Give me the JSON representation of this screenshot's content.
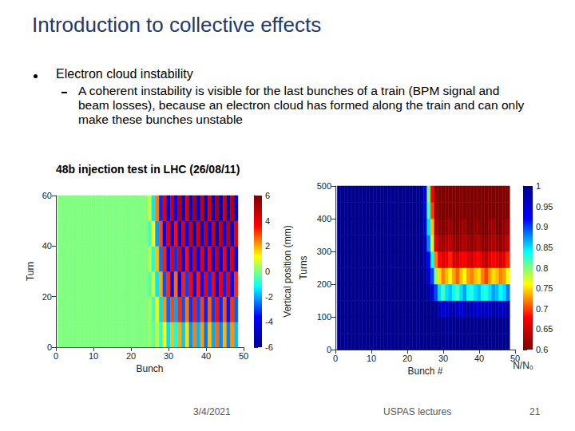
{
  "slide": {
    "title": "Introduction to collective effects",
    "bullet": "Electron cloud instability",
    "sub_bullet": "A coherent instability is visible for the last bunches of a train (BPM signal and beam losses), because an electron cloud has formed along the train and can only make these bunches unstable",
    "caption": "48b injection test in LHC (26/08/11)",
    "footer": {
      "date": "3/4/2021",
      "course": "USPAS lectures",
      "page": "21"
    }
  },
  "chart_data": [
    {
      "type": "heatmap",
      "x_label": "Bunch",
      "y_label": "Turn",
      "x": [
        1,
        2,
        3,
        4,
        5,
        6,
        7,
        8,
        9,
        10,
        11,
        12,
        13,
        14,
        15,
        16,
        17,
        18,
        19,
        20,
        21,
        22,
        23,
        24,
        25,
        26,
        27,
        28,
        29,
        30,
        31,
        32,
        33,
        34,
        35,
        36,
        37,
        38,
        39,
        40,
        41,
        42,
        43,
        44,
        45,
        46,
        47,
        48
      ],
      "y": [
        5,
        15,
        25,
        35,
        45,
        55
      ],
      "z": [
        [
          0,
          0,
          0,
          0,
          0,
          0,
          0,
          0,
          0,
          0,
          0,
          0,
          0,
          0,
          0,
          0,
          0,
          0,
          0,
          0,
          0,
          0,
          0,
          0,
          0.2,
          -0.3,
          0.5,
          -0.8,
          1.2,
          -1.5,
          1.8,
          -1.2,
          2.0,
          -1.7,
          1.5,
          -2.2,
          2.4,
          -1.9,
          2.1,
          -2.5,
          1.8,
          -2.0,
          2.6,
          -2.3,
          1.9,
          -2.4,
          2.2,
          -1.8
        ],
        [
          0,
          0,
          0,
          0,
          0,
          0,
          0,
          0,
          0,
          0,
          0,
          0,
          0,
          0,
          0,
          0,
          0,
          0,
          0,
          0,
          0,
          0,
          0,
          0,
          0.3,
          -0.6,
          1.0,
          -1.5,
          2.2,
          -2.6,
          2.9,
          -2.1,
          3.2,
          -2.8,
          2.5,
          -3.1,
          3.4,
          -2.9,
          3.0,
          -3.3,
          2.7,
          -3.0,
          3.5,
          -3.2,
          2.8,
          -3.4,
          3.1,
          -2.7
        ],
        [
          0,
          0,
          0,
          0,
          0,
          0,
          0,
          0,
          0,
          0,
          0,
          0,
          0,
          0,
          0,
          0,
          0,
          0,
          0,
          0,
          0,
          0,
          0,
          0,
          -0.4,
          0.8,
          -1.4,
          2.0,
          -2.8,
          3.2,
          -3.5,
          2.6,
          -3.8,
          3.3,
          -3.0,
          3.6,
          -4.0,
          3.4,
          -3.5,
          3.9,
          -3.2,
          3.6,
          -4.1,
          3.8,
          -3.3,
          4.0,
          -3.7,
          3.2
        ],
        [
          0,
          0,
          0,
          0,
          0,
          0,
          0,
          0,
          0,
          0,
          0,
          0,
          0,
          0,
          0,
          0,
          0,
          0,
          0,
          0,
          0,
          0,
          0,
          0,
          0.5,
          -1.0,
          1.8,
          -2.5,
          3.3,
          -3.7,
          4.0,
          -3.1,
          4.3,
          -3.8,
          3.5,
          -4.1,
          4.5,
          -3.9,
          4.0,
          -4.4,
          3.7,
          -4.1,
          4.6,
          -4.3,
          3.8,
          -4.5,
          4.2,
          -3.7
        ],
        [
          0,
          0,
          0,
          0,
          0,
          0,
          0,
          0,
          0,
          0,
          0,
          0,
          0,
          0,
          0,
          0,
          0,
          0,
          0,
          0,
          0,
          0,
          0,
          0,
          -0.6,
          1.2,
          -2.1,
          2.9,
          -3.7,
          4.1,
          -4.4,
          3.5,
          -4.7,
          4.2,
          -3.9,
          4.5,
          -4.9,
          4.3,
          -4.4,
          4.8,
          -4.1,
          4.5,
          -5.0,
          4.7,
          -4.2,
          4.9,
          -4.6,
          4.1
        ],
        [
          0,
          0,
          0,
          0,
          0,
          0,
          0,
          0,
          0,
          0,
          0,
          0,
          0,
          0,
          0,
          0,
          0,
          0,
          0,
          0,
          0,
          0,
          0,
          0,
          0.7,
          -1.4,
          2.4,
          -3.2,
          4.0,
          -4.4,
          4.7,
          -3.8,
          5.0,
          -4.5,
          4.2,
          -4.8,
          5.2,
          -4.6,
          4.7,
          -5.1,
          4.4,
          -4.8,
          5.3,
          -5.0,
          4.5,
          -5.2,
          4.9,
          -4.4
        ]
      ],
      "xlim": [
        0,
        50
      ],
      "xticks": [
        0,
        10,
        20,
        30,
        40,
        50
      ],
      "ylim": [
        0,
        60
      ],
      "yticks": [
        0,
        20,
        40,
        60
      ],
      "color_label": "Vertical position (mm)",
      "color_range": [
        -6,
        6
      ],
      "color_ticks": [
        -6,
        -4,
        -2,
        0,
        2,
        4,
        6
      ]
    },
    {
      "type": "heatmap",
      "x_label": "Bunch #",
      "y_label": "Turns",
      "x": [
        1,
        2,
        3,
        4,
        5,
        6,
        7,
        8,
        9,
        10,
        11,
        12,
        13,
        14,
        15,
        16,
        17,
        18,
        19,
        20,
        21,
        22,
        23,
        24,
        25,
        26,
        27,
        28,
        29,
        30,
        31,
        32,
        33,
        34,
        35,
        36,
        37,
        38,
        39,
        40,
        41,
        42,
        43,
        44,
        45,
        46,
        47,
        48
      ],
      "y": [
        25,
        75,
        125,
        175,
        225,
        275,
        325,
        375,
        425,
        475
      ],
      "z": [
        [
          1,
          1,
          1,
          1,
          1,
          1,
          1,
          1,
          1,
          1,
          1,
          1,
          1,
          1,
          1,
          1,
          1,
          1,
          1,
          1,
          1,
          1,
          1,
          1,
          1,
          1,
          1,
          1,
          1,
          1,
          1,
          1,
          1,
          1,
          1,
          1,
          1,
          1,
          1,
          1,
          1,
          1,
          1,
          1,
          1,
          1,
          1,
          1
        ],
        [
          1,
          1,
          1,
          1,
          1,
          1,
          1,
          1,
          1,
          1,
          1,
          1,
          1,
          1,
          1,
          1,
          1,
          1,
          1,
          1,
          1,
          1,
          1,
          1,
          1,
          1,
          1,
          1,
          1,
          1,
          0.99,
          1,
          1,
          1,
          1,
          1,
          1,
          1,
          1,
          1,
          1,
          1,
          1,
          1,
          1,
          1,
          1,
          1
        ],
        [
          1,
          1,
          1,
          1,
          1,
          1,
          1,
          1,
          1,
          1,
          1,
          1,
          1,
          1,
          1,
          1,
          1,
          1,
          1,
          1,
          1,
          1,
          1,
          1,
          1,
          1,
          1,
          1,
          0.97,
          0.95,
          0.96,
          0.97,
          0.98,
          0.96,
          0.95,
          0.97,
          0.98,
          0.97,
          0.96,
          0.95,
          0.97,
          0.96,
          0.97,
          0.98,
          0.97,
          0.96,
          0.97,
          0.98
        ],
        [
          1,
          1,
          1,
          1,
          1,
          1,
          1,
          1,
          1,
          1,
          1,
          1,
          1,
          1,
          1,
          1,
          1,
          1,
          1,
          1,
          1,
          1,
          1,
          1,
          1,
          0.98,
          0.96,
          0.9,
          0.85,
          0.82,
          0.85,
          0.86,
          0.84,
          0.82,
          0.85,
          0.87,
          0.84,
          0.83,
          0.85,
          0.86,
          0.84,
          0.83,
          0.85,
          0.87,
          0.86,
          0.84,
          0.85,
          0.88
        ],
        [
          1,
          1,
          1,
          1,
          1,
          1,
          1,
          1,
          1,
          1,
          1,
          1,
          1,
          1,
          1,
          1,
          1,
          1,
          1,
          1,
          1,
          1,
          1,
          1,
          0.99,
          0.95,
          0.9,
          0.8,
          0.75,
          0.72,
          0.74,
          0.76,
          0.73,
          0.71,
          0.74,
          0.76,
          0.73,
          0.72,
          0.74,
          0.75,
          0.72,
          0.7,
          0.73,
          0.75,
          0.74,
          0.72,
          0.73,
          0.76
        ],
        [
          1,
          1,
          1,
          1,
          1,
          1,
          1,
          1,
          1,
          1,
          1,
          1,
          1,
          1,
          1,
          1,
          1,
          1,
          1,
          1,
          1,
          1,
          1,
          1,
          0.98,
          0.92,
          0.84,
          0.72,
          0.68,
          0.66,
          0.67,
          0.69,
          0.66,
          0.65,
          0.67,
          0.68,
          0.66,
          0.65,
          0.67,
          0.68,
          0.65,
          0.64,
          0.66,
          0.68,
          0.67,
          0.65,
          0.66,
          0.69
        ],
        [
          1,
          1,
          1,
          1,
          1,
          1,
          1,
          1,
          1,
          1,
          1,
          1,
          1,
          1,
          1,
          1,
          1,
          1,
          1,
          1,
          1,
          1,
          1,
          1,
          0.97,
          0.88,
          0.78,
          0.66,
          0.63,
          0.62,
          0.63,
          0.64,
          0.62,
          0.61,
          0.62,
          0.63,
          0.62,
          0.61,
          0.62,
          0.63,
          0.61,
          0.61,
          0.62,
          0.63,
          0.62,
          0.61,
          0.62,
          0.64
        ],
        [
          1,
          1,
          1,
          1,
          1,
          1,
          1,
          1,
          1,
          1,
          1,
          1,
          1,
          1,
          1,
          1,
          1,
          1,
          1,
          1,
          1,
          1,
          1,
          1,
          0.95,
          0.85,
          0.74,
          0.63,
          0.61,
          0.6,
          0.61,
          0.62,
          0.6,
          0.6,
          0.61,
          0.62,
          0.6,
          0.6,
          0.61,
          0.61,
          0.6,
          0.6,
          0.61,
          0.62,
          0.6,
          0.6,
          0.61,
          0.62
        ],
        [
          1,
          1,
          1,
          1,
          1,
          1,
          1,
          1,
          1,
          1,
          1,
          1,
          1,
          1,
          1,
          1,
          1,
          1,
          1,
          1,
          1,
          1,
          1,
          1,
          0.94,
          0.82,
          0.7,
          0.62,
          0.6,
          0.6,
          0.6,
          0.6,
          0.6,
          0.6,
          0.6,
          0.6,
          0.6,
          0.6,
          0.6,
          0.6,
          0.6,
          0.6,
          0.6,
          0.6,
          0.6,
          0.6,
          0.6,
          0.6
        ],
        [
          1,
          1,
          1,
          1,
          1,
          1,
          1,
          1,
          1,
          1,
          1,
          1,
          1,
          1,
          1,
          1,
          1,
          1,
          1,
          1,
          1,
          1,
          1,
          1,
          0.93,
          0.8,
          0.68,
          0.61,
          0.6,
          0.6,
          0.6,
          0.6,
          0.6,
          0.6,
          0.6,
          0.6,
          0.6,
          0.6,
          0.6,
          0.6,
          0.6,
          0.6,
          0.6,
          0.6,
          0.6,
          0.6,
          0.6,
          0.6
        ]
      ],
      "xlim": [
        0,
        50
      ],
      "xticks": [
        0,
        10,
        20,
        30,
        40,
        50
      ],
      "ylim": [
        0,
        500
      ],
      "yticks": [
        0,
        100,
        200,
        300,
        400,
        500
      ],
      "color_label": "N/N₀",
      "color_range": [
        0.6,
        1
      ],
      "color_ticks": [
        0.6,
        0.65,
        0.7,
        0.75,
        0.8,
        0.85,
        0.9,
        0.95,
        1
      ]
    }
  ]
}
